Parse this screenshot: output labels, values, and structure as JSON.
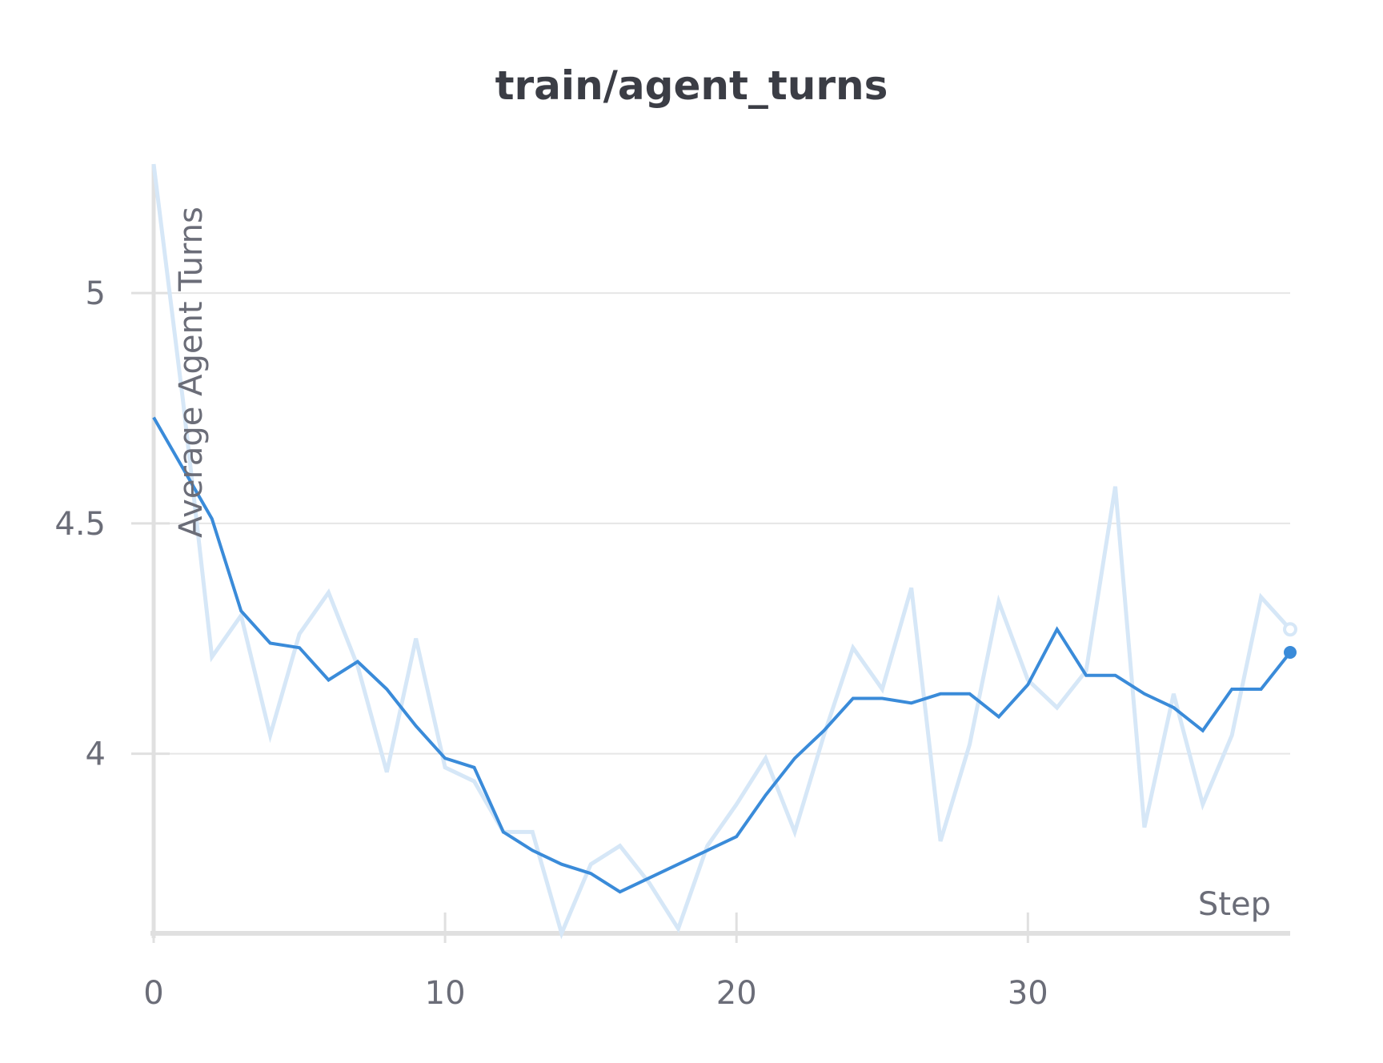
{
  "chart_data": {
    "type": "line",
    "title": "train/agent_turns",
    "xlabel": "Step",
    "ylabel": "Average Agent Turns",
    "xlim": [
      0,
      39
    ],
    "ylim": [
      3.61,
      5.28
    ],
    "x_ticks": [
      0,
      10,
      20,
      30
    ],
    "y_ticks": [
      4,
      4.5,
      5
    ],
    "y_tick_labels": [
      "4",
      "4.5",
      "5"
    ],
    "x_tick_labels": [
      "0",
      "10",
      "20",
      "30"
    ],
    "grid": true,
    "legend": "none",
    "x": [
      0,
      1,
      2,
      3,
      4,
      5,
      6,
      7,
      8,
      9,
      10,
      11,
      12,
      13,
      14,
      15,
      16,
      17,
      18,
      19,
      20,
      21,
      22,
      23,
      24,
      25,
      26,
      27,
      28,
      29,
      30,
      31,
      32,
      33,
      34,
      35,
      36,
      37,
      38,
      39
    ],
    "series": [
      {
        "role": "raw",
        "color": "#d6e7f7",
        "values": [
          5.28,
          4.77,
          4.21,
          4.3,
          4.04,
          4.26,
          4.35,
          4.19,
          3.96,
          4.25,
          3.97,
          3.94,
          3.83,
          3.83,
          3.61,
          3.76,
          3.8,
          3.72,
          3.62,
          3.8,
          3.89,
          3.99,
          3.83,
          4.04,
          4.23,
          4.14,
          4.36,
          3.81,
          4.02,
          4.33,
          4.16,
          4.1,
          4.18,
          4.58,
          3.84,
          4.13,
          3.89,
          4.04,
          4.34,
          4.27
        ]
      },
      {
        "role": "smoothed",
        "color": "#3a8bd9",
        "values": [
          4.73,
          4.62,
          4.51,
          4.31,
          4.24,
          4.23,
          4.16,
          4.2,
          4.14,
          4.06,
          3.99,
          3.97,
          3.83,
          3.79,
          3.76,
          3.74,
          3.7,
          3.73,
          3.76,
          3.79,
          3.82,
          3.91,
          3.99,
          4.05,
          4.12,
          4.12,
          4.11,
          4.13,
          4.13,
          4.08,
          4.15,
          4.27,
          4.17,
          4.17,
          4.13,
          4.1,
          4.05,
          4.14,
          4.14,
          4.22
        ]
      }
    ]
  }
}
